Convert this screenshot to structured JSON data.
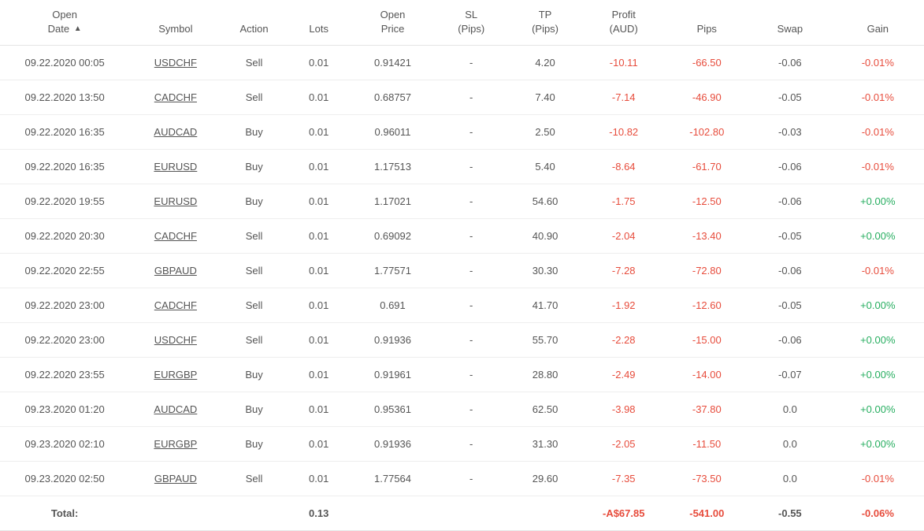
{
  "table": {
    "columns": [
      {
        "key": "open_date",
        "label_l1": "Open",
        "label_l2": "Date",
        "sorted": true,
        "sort_dir": "asc",
        "width": "14%"
      },
      {
        "key": "symbol",
        "label_l1": "Symbol",
        "label_l2": "",
        "width": "10%"
      },
      {
        "key": "action",
        "label_l1": "Action",
        "label_l2": "",
        "width": "7%"
      },
      {
        "key": "lots",
        "label_l1": "Lots",
        "label_l2": "",
        "width": "7%"
      },
      {
        "key": "open_price",
        "label_l1": "Open",
        "label_l2": "Price",
        "width": "9%"
      },
      {
        "key": "sl",
        "label_l1": "SL",
        "label_l2": "(Pips)",
        "width": "8%"
      },
      {
        "key": "tp",
        "label_l1": "TP",
        "label_l2": "(Pips)",
        "width": "8%"
      },
      {
        "key": "profit",
        "label_l1": "Profit",
        "label_l2": "(AUD)",
        "width": "9%"
      },
      {
        "key": "pips",
        "label_l1": "Pips",
        "label_l2": "",
        "width": "9%"
      },
      {
        "key": "swap",
        "label_l1": "Swap",
        "label_l2": "",
        "width": "9%"
      },
      {
        "key": "gain",
        "label_l1": "Gain",
        "label_l2": "",
        "width": "10%"
      }
    ],
    "rows": [
      {
        "open_date": "09.22.2020 00:05",
        "symbol": "USDCHF",
        "action": "Sell",
        "lots": "0.01",
        "open_price": "0.91421",
        "sl": "-",
        "tp": "4.20",
        "profit": "-10.11",
        "pips": "-66.50",
        "swap": "-0.06",
        "gain": "-0.01%",
        "gain_pos": false
      },
      {
        "open_date": "09.22.2020 13:50",
        "symbol": "CADCHF",
        "action": "Sell",
        "lots": "0.01",
        "open_price": "0.68757",
        "sl": "-",
        "tp": "7.40",
        "profit": "-7.14",
        "pips": "-46.90",
        "swap": "-0.05",
        "gain": "-0.01%",
        "gain_pos": false
      },
      {
        "open_date": "09.22.2020 16:35",
        "symbol": "AUDCAD",
        "action": "Buy",
        "lots": "0.01",
        "open_price": "0.96011",
        "sl": "-",
        "tp": "2.50",
        "profit": "-10.82",
        "pips": "-102.80",
        "swap": "-0.03",
        "gain": "-0.01%",
        "gain_pos": false
      },
      {
        "open_date": "09.22.2020 16:35",
        "symbol": "EURUSD",
        "action": "Buy",
        "lots": "0.01",
        "open_price": "1.17513",
        "sl": "-",
        "tp": "5.40",
        "profit": "-8.64",
        "pips": "-61.70",
        "swap": "-0.06",
        "gain": "-0.01%",
        "gain_pos": false
      },
      {
        "open_date": "09.22.2020 19:55",
        "symbol": "EURUSD",
        "action": "Buy",
        "lots": "0.01",
        "open_price": "1.17021",
        "sl": "-",
        "tp": "54.60",
        "profit": "-1.75",
        "pips": "-12.50",
        "swap": "-0.06",
        "gain": "+0.00%",
        "gain_pos": true
      },
      {
        "open_date": "09.22.2020 20:30",
        "symbol": "CADCHF",
        "action": "Sell",
        "lots": "0.01",
        "open_price": "0.69092",
        "sl": "-",
        "tp": "40.90",
        "profit": "-2.04",
        "pips": "-13.40",
        "swap": "-0.05",
        "gain": "+0.00%",
        "gain_pos": true
      },
      {
        "open_date": "09.22.2020 22:55",
        "symbol": "GBPAUD",
        "action": "Sell",
        "lots": "0.01",
        "open_price": "1.77571",
        "sl": "-",
        "tp": "30.30",
        "profit": "-7.28",
        "pips": "-72.80",
        "swap": "-0.06",
        "gain": "-0.01%",
        "gain_pos": false
      },
      {
        "open_date": "09.22.2020 23:00",
        "symbol": "CADCHF",
        "action": "Sell",
        "lots": "0.01",
        "open_price": "0.691",
        "sl": "-",
        "tp": "41.70",
        "profit": "-1.92",
        "pips": "-12.60",
        "swap": "-0.05",
        "gain": "+0.00%",
        "gain_pos": true
      },
      {
        "open_date": "09.22.2020 23:00",
        "symbol": "USDCHF",
        "action": "Sell",
        "lots": "0.01",
        "open_price": "0.91936",
        "sl": "-",
        "tp": "55.70",
        "profit": "-2.28",
        "pips": "-15.00",
        "swap": "-0.06",
        "gain": "+0.00%",
        "gain_pos": true
      },
      {
        "open_date": "09.22.2020 23:55",
        "symbol": "EURGBP",
        "action": "Buy",
        "lots": "0.01",
        "open_price": "0.91961",
        "sl": "-",
        "tp": "28.80",
        "profit": "-2.49",
        "pips": "-14.00",
        "swap": "-0.07",
        "gain": "+0.00%",
        "gain_pos": true
      },
      {
        "open_date": "09.23.2020 01:20",
        "symbol": "AUDCAD",
        "action": "Buy",
        "lots": "0.01",
        "open_price": "0.95361",
        "sl": "-",
        "tp": "62.50",
        "profit": "-3.98",
        "pips": "-37.80",
        "swap": "0.0",
        "gain": "+0.00%",
        "gain_pos": true
      },
      {
        "open_date": "09.23.2020 02:10",
        "symbol": "EURGBP",
        "action": "Buy",
        "lots": "0.01",
        "open_price": "0.91936",
        "sl": "-",
        "tp": "31.30",
        "profit": "-2.05",
        "pips": "-11.50",
        "swap": "0.0",
        "gain": "+0.00%",
        "gain_pos": true
      },
      {
        "open_date": "09.23.2020 02:50",
        "symbol": "GBPAUD",
        "action": "Sell",
        "lots": "0.01",
        "open_price": "1.77564",
        "sl": "-",
        "tp": "29.60",
        "profit": "-7.35",
        "pips": "-73.50",
        "swap": "0.0",
        "gain": "-0.01%",
        "gain_pos": false
      }
    ],
    "footer": {
      "label": "Total:",
      "lots": "0.13",
      "profit": "-A$67.85",
      "pips": "-541.00",
      "swap": "-0.55",
      "gain": "-0.06%"
    },
    "colors": {
      "text": "#555555",
      "negative": "#e74c3c",
      "positive": "#27ae60",
      "row_border": "#eeeeee",
      "header_border": "#e5e5e5",
      "background": "#ffffff"
    }
  }
}
